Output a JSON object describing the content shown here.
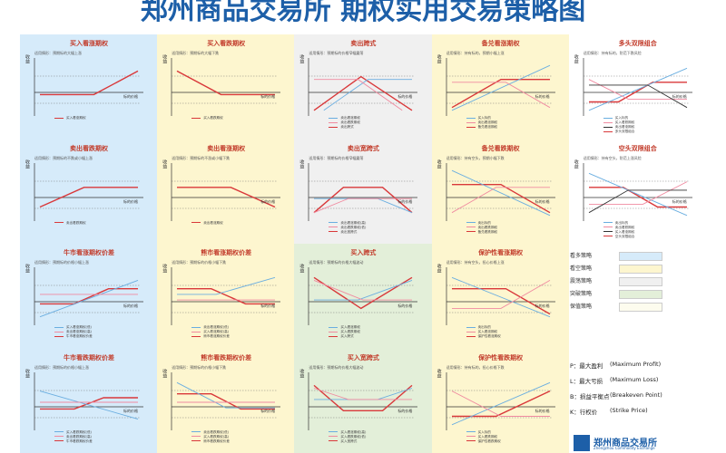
{
  "title": "郑州商品交易所 期权实用交易策略图",
  "colors": {
    "bullish": "#d6ebfa",
    "bearish": "#fdf6cf",
    "neutral": "#f0f0f0",
    "volatile": "#e3efd9",
    "border": "#c9c9c9",
    "red": "#d9383a",
    "blue": "#6aaee0",
    "pink": "#f08aa0",
    "dark": "#333333"
  },
  "columns": [
    {
      "panels": [
        {
          "title": "买入看涨期权",
          "desc": "适用情形：预期标的大幅上涨",
          "legend": [
            "买入看涨期权"
          ]
        },
        {
          "title": "卖出看跌期权",
          "desc": "适用情形：预期标的不跌或小幅上涨",
          "legend": [
            "卖出看跌期权"
          ]
        },
        {
          "title": "牛市看涨期权价差",
          "desc": "适用情形：预期标的价格小幅上涨",
          "legend": [
            "买入看涨期权(低)",
            "卖出看涨期权(高)",
            "牛市看涨期权价差"
          ]
        },
        {
          "title": "牛市看跌期权价差",
          "desc": "适用情形：预期标的价格小幅上涨",
          "legend": [
            "买入看跌期权(低)",
            "卖出看跌期权(高)",
            "牛市看跌期权价差"
          ]
        }
      ]
    },
    {
      "panels": [
        {
          "title": "买入看跌期权",
          "desc": "适用情形：预期标的大幅下跌",
          "legend": [
            "买入看跌期权"
          ]
        },
        {
          "title": "卖出看涨期权",
          "desc": "适用情形：预期标的不涨或小幅下跌",
          "legend": [
            "卖出看涨期权"
          ]
        },
        {
          "title": "熊市看涨期权价差",
          "desc": "适用情形：预期标的价格小幅下跌",
          "legend": [
            "卖出看涨期权(低)",
            "买入看涨期权(高)",
            "熊市看涨期权价差"
          ]
        },
        {
          "title": "熊市看跌期权价差",
          "desc": "适用情形：预期标的价格小幅下跌",
          "legend": [
            "卖出看跌期权(低)",
            "买入看跌期权(高)",
            "熊市看跌期权价差"
          ]
        }
      ]
    },
    {
      "panels": [
        {
          "title": "卖出跨式",
          "desc": "适用情形：预期标的价格窄幅震荡",
          "legend": [
            "卖出看涨期权",
            "卖出看跌期权",
            "卖出跨式"
          ]
        },
        {
          "title": "卖出宽跨式",
          "desc": "适用情形：预期标的价格窄幅震荡",
          "legend": [
            "卖出看涨期权(高)",
            "卖出看跌期权(低)",
            "卖出宽跨式"
          ]
        },
        {
          "title": "买入跨式",
          "desc": "适用情形：预期标的价格大幅波动",
          "legend": [
            "买入看涨期权",
            "买入看跌期权",
            "买入跨式"
          ]
        },
        {
          "title": "买入宽跨式",
          "desc": "适用情形：预期标的价格大幅波动",
          "legend": [
            "买入看涨期权(高)",
            "买入看跌期权(低)",
            "买入宽跨式"
          ]
        }
      ]
    },
    {
      "panels": [
        {
          "title": "备兑看涨期权",
          "desc": "适用情形：持有标的，预期小幅上涨",
          "legend": [
            "买入标的",
            "卖出看涨期权",
            "备兑看涨期权"
          ]
        },
        {
          "title": "备兑看跌期权",
          "desc": "适用情形：持有空头，预期小幅下跌",
          "legend": [
            "卖出标的",
            "卖出看跌期权",
            "备兑看跌期权"
          ]
        },
        {
          "title": "保护性看涨期权",
          "desc": "适用情形：持有空头，担心价格上涨",
          "legend": [
            "卖出标的",
            "买入看涨期权",
            "保护性看涨期权"
          ]
        },
        {
          "title": "保护性看跌期权",
          "desc": "适用情形：持有标的，担心价格下跌",
          "legend": [
            "买入标的",
            "买入看跌期权",
            "保护性看跌期权"
          ]
        }
      ]
    },
    {
      "panels": [
        {
          "title": "多头双限组合",
          "desc": "适用情形：持有标的，防范下跌风险",
          "legend": [
            "买入标的",
            "买入看跌期权",
            "卖出看涨期权",
            "多头双限组合"
          ]
        },
        {
          "title": "空头双限组合",
          "desc": "适用情形：持有空头，防范上涨风险",
          "legend": [
            "卖出标的",
            "卖出看跌期权",
            "买入看涨期权",
            "空头双限组合"
          ]
        }
      ]
    }
  ],
  "axis": {
    "y_label": "收益",
    "x_label": "标的价格"
  },
  "strategy_legend": [
    {
      "label": "看多策略",
      "color": "#d6ebfa"
    },
    {
      "label": "看空策略",
      "color": "#fdf6cf"
    },
    {
      "label": "震荡策略",
      "color": "#f0f0f0"
    },
    {
      "label": "突破策略",
      "color": "#e3efd9"
    },
    {
      "label": "保值策略",
      "color": "#fdfcee"
    }
  ],
  "abbreviations": [
    {
      "abbr": "P：最大盈利",
      "en": "(Maximum Profit)"
    },
    {
      "abbr": "L：最大亏损",
      "en": "(Maximum Loss)"
    },
    {
      "abbr": "B：损益平衡点",
      "en": "(Breakeven Point)"
    },
    {
      "abbr": "K：行权价",
      "en": "(Strike Price)"
    }
  ],
  "logo": {
    "name": "郑州商品交易所",
    "sub": "Zhengzhou Commodity Exchange"
  }
}
